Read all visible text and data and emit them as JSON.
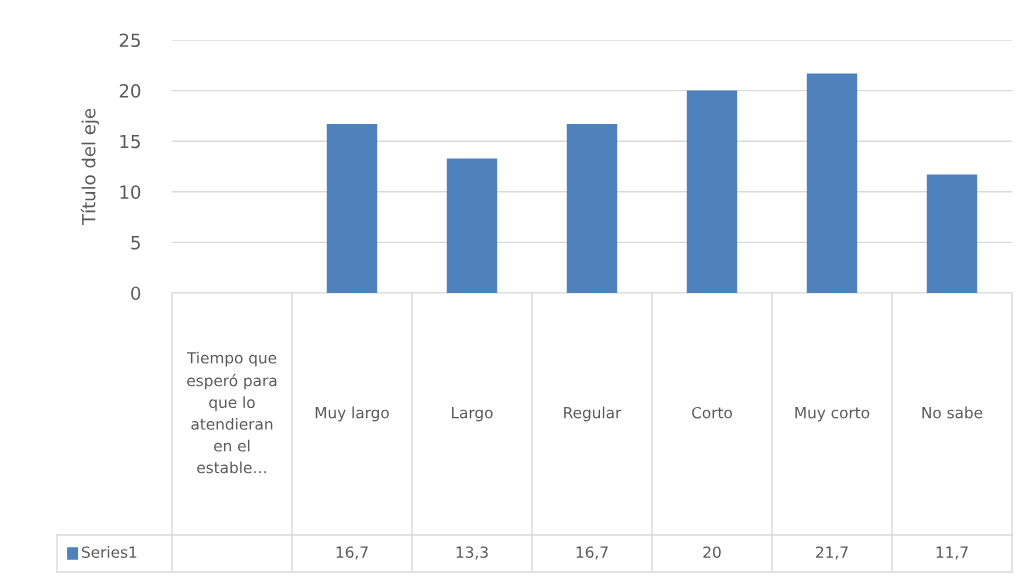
{
  "chart_data": {
    "type": "bar",
    "ylabel": "Título del eje",
    "categories": [
      "Tiempo que esperó para que lo atendieran en el estable…",
      "Muy largo",
      "Largo",
      "Regular",
      "Corto",
      "Muy corto",
      "No sabe"
    ],
    "series": [
      {
        "name": "Series1",
        "color": "#4f81bd",
        "values": [
          null,
          16.7,
          13.3,
          16.7,
          20,
          21.7,
          11.7
        ],
        "value_labels": [
          null,
          "16,7",
          "13,3",
          "16,7",
          "20",
          "21,7",
          "11,7"
        ]
      }
    ],
    "ylim": [
      0,
      25
    ],
    "yticks": [
      0,
      5,
      10,
      15,
      20,
      25
    ],
    "grid": "y"
  }
}
